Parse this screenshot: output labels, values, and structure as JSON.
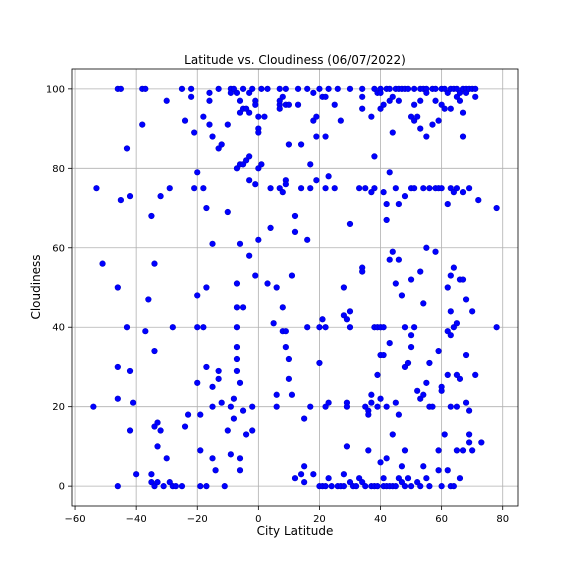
{
  "chart_data": {
    "type": "scatter",
    "title": "Latitude vs. Cloudiness (06/07/2022)",
    "xlabel": "City Latitude",
    "ylabel": "Cloudiness",
    "xlim": [
      -61,
      85
    ],
    "ylim": [
      -5,
      105
    ],
    "x_ticks": [
      -60,
      -40,
      -20,
      0,
      20,
      40,
      60,
      80
    ],
    "y_ticks": [
      0,
      20,
      40,
      60,
      80,
      100
    ],
    "grid": true,
    "legend": "none",
    "marker_color": "#0000ff",
    "marker_edge_color": "#0000cc",
    "points": [
      [
        -54,
        20
      ],
      [
        -53,
        75
      ],
      [
        -51,
        56
      ],
      [
        -46,
        100
      ],
      [
        -45,
        100
      ],
      [
        -46,
        50
      ],
      [
        -46,
        30
      ],
      [
        -45,
        72
      ],
      [
        -46,
        22
      ],
      [
        -46,
        0
      ],
      [
        -43,
        85
      ],
      [
        -42,
        73
      ],
      [
        -43,
        40
      ],
      [
        -42,
        29
      ],
      [
        -42,
        14
      ],
      [
        -41,
        21
      ],
      [
        -40,
        3
      ],
      [
        -38,
        100
      ],
      [
        -37,
        100
      ],
      [
        -38,
        91
      ],
      [
        -37,
        39
      ],
      [
        -36,
        47
      ],
      [
        -35,
        68
      ],
      [
        -35,
        3
      ],
      [
        -35,
        1
      ],
      [
        -34,
        0
      ],
      [
        -34,
        56
      ],
      [
        -34,
        34
      ],
      [
        -34,
        15
      ],
      [
        -33,
        16
      ],
      [
        -33,
        10
      ],
      [
        -32,
        73
      ],
      [
        -32,
        14
      ],
      [
        -33,
        1
      ],
      [
        -31,
        0
      ],
      [
        -30,
        97
      ],
      [
        -29,
        75
      ],
      [
        -30,
        7
      ],
      [
        -29,
        1
      ],
      [
        -28,
        40
      ],
      [
        -28,
        0
      ],
      [
        -27,
        0
      ],
      [
        -25,
        100
      ],
      [
        -24,
        92
      ],
      [
        -25,
        0
      ],
      [
        -24,
        15
      ],
      [
        -23,
        18
      ],
      [
        -22,
        100
      ],
      [
        -22,
        98
      ],
      [
        -21,
        89
      ],
      [
        -21,
        75
      ],
      [
        -20,
        79
      ],
      [
        -20,
        48
      ],
      [
        -20,
        40
      ],
      [
        -20,
        26
      ],
      [
        -19,
        18
      ],
      [
        -19,
        9
      ],
      [
        -19,
        0
      ],
      [
        -18,
        93
      ],
      [
        -18,
        75
      ],
      [
        -18,
        40
      ],
      [
        -17,
        70
      ],
      [
        -17,
        50
      ],
      [
        -17,
        30
      ],
      [
        -17,
        0
      ],
      [
        -16,
        99
      ],
      [
        -16,
        97
      ],
      [
        -16,
        91
      ],
      [
        -15,
        88
      ],
      [
        -15,
        61
      ],
      [
        -15,
        25
      ],
      [
        -15,
        20
      ],
      [
        -15,
        7
      ],
      [
        -14,
        4
      ],
      [
        -13,
        100
      ],
      [
        -13,
        85
      ],
      [
        -13,
        29
      ],
      [
        -13,
        27
      ],
      [
        -12,
        86
      ],
      [
        -12,
        21
      ],
      [
        -11,
        0
      ],
      [
        -10,
        91
      ],
      [
        -10,
        69
      ],
      [
        -10,
        14
      ],
      [
        -9,
        100
      ],
      [
        -9,
        99
      ],
      [
        -9,
        20
      ],
      [
        -9,
        8
      ],
      [
        -8,
        22
      ],
      [
        -8,
        17
      ],
      [
        -8,
        100
      ],
      [
        -7,
        99
      ],
      [
        -7,
        80
      ],
      [
        -7,
        51
      ],
      [
        -7,
        45
      ],
      [
        -7,
        40
      ],
      [
        -7,
        35
      ],
      [
        -7,
        32
      ],
      [
        -7,
        29
      ],
      [
        -6,
        26
      ],
      [
        -6,
        4
      ],
      [
        -6,
        97
      ],
      [
        -6,
        94
      ],
      [
        -6,
        81
      ],
      [
        -6,
        61
      ],
      [
        -6,
        7
      ],
      [
        -5,
        100
      ],
      [
        -5,
        95
      ],
      [
        -5,
        81
      ],
      [
        -5,
        45
      ],
      [
        -5,
        19
      ],
      [
        -4,
        95
      ],
      [
        -4,
        82
      ],
      [
        -4,
        13
      ],
      [
        -3,
        94
      ],
      [
        -3,
        99
      ],
      [
        -3,
        83
      ],
      [
        -3,
        77
      ],
      [
        -3,
        58
      ],
      [
        -2,
        14
      ],
      [
        -2,
        20
      ],
      [
        -2,
        100
      ],
      [
        -1,
        97
      ],
      [
        -1,
        96
      ],
      [
        -1,
        76
      ],
      [
        -1,
        53
      ],
      [
        0,
        93
      ],
      [
        0,
        90
      ],
      [
        0,
        89
      ],
      [
        0,
        80
      ],
      [
        0,
        62
      ],
      [
        1,
        100
      ],
      [
        1,
        81
      ],
      [
        2,
        93
      ],
      [
        3,
        51
      ],
      [
        3,
        100
      ],
      [
        4,
        75
      ],
      [
        4,
        65
      ],
      [
        5,
        41
      ],
      [
        6,
        23
      ],
      [
        6,
        20
      ],
      [
        6,
        50
      ],
      [
        7,
        100
      ],
      [
        7,
        96
      ],
      [
        7,
        97
      ],
      [
        7,
        95
      ],
      [
        7,
        75
      ],
      [
        8,
        98
      ],
      [
        8,
        74
      ],
      [
        8,
        45
      ],
      [
        8,
        39
      ],
      [
        9,
        100
      ],
      [
        9,
        96
      ],
      [
        9,
        77
      ],
      [
        9,
        76
      ],
      [
        9,
        39
      ],
      [
        9,
        35
      ],
      [
        10,
        32
      ],
      [
        10,
        27
      ],
      [
        10,
        96
      ],
      [
        10,
        86
      ],
      [
        11,
        53
      ],
      [
        11,
        23
      ],
      [
        12,
        68
      ],
      [
        12,
        64
      ],
      [
        12,
        2
      ],
      [
        13,
        100
      ],
      [
        13,
        96
      ],
      [
        14,
        86
      ],
      [
        14,
        75
      ],
      [
        14,
        3
      ],
      [
        15,
        1
      ],
      [
        15,
        5
      ],
      [
        15,
        17
      ],
      [
        16,
        62
      ],
      [
        16,
        100
      ],
      [
        16,
        40
      ],
      [
        17,
        81
      ],
      [
        17,
        75
      ],
      [
        17,
        20
      ],
      [
        18,
        92
      ],
      [
        18,
        3
      ],
      [
        18,
        99
      ],
      [
        19,
        93
      ],
      [
        19,
        88
      ],
      [
        19,
        77
      ],
      [
        20,
        40
      ],
      [
        20,
        100
      ],
      [
        20,
        31
      ],
      [
        20,
        0
      ],
      [
        21,
        98
      ],
      [
        21,
        42
      ],
      [
        21,
        0
      ],
      [
        22,
        98
      ],
      [
        22,
        88
      ],
      [
        22,
        75
      ],
      [
        22,
        40
      ],
      [
        22,
        20
      ],
      [
        22,
        0
      ],
      [
        23,
        100
      ],
      [
        23,
        78
      ],
      [
        23,
        21
      ],
      [
        23,
        2
      ],
      [
        24,
        0
      ],
      [
        25,
        75
      ],
      [
        25,
        96
      ],
      [
        26,
        100
      ],
      [
        26,
        0
      ],
      [
        27,
        0
      ],
      [
        27,
        92
      ],
      [
        28,
        50
      ],
      [
        28,
        43
      ],
      [
        28,
        3
      ],
      [
        28,
        0
      ],
      [
        29,
        42
      ],
      [
        29,
        21
      ],
      [
        29,
        20
      ],
      [
        29,
        10
      ],
      [
        30,
        66
      ],
      [
        30,
        100
      ],
      [
        30,
        44
      ],
      [
        30,
        40
      ],
      [
        30,
        1
      ],
      [
        31,
        0
      ],
      [
        32,
        0
      ],
      [
        33,
        75
      ],
      [
        33,
        2
      ],
      [
        34,
        100
      ],
      [
        34,
        98
      ],
      [
        34,
        95
      ],
      [
        34,
        55
      ],
      [
        34,
        54
      ],
      [
        34,
        1
      ],
      [
        35,
        75
      ],
      [
        35,
        0
      ],
      [
        35,
        20
      ],
      [
        36,
        19
      ],
      [
        36,
        9
      ],
      [
        36,
        18
      ],
      [
        37,
        93
      ],
      [
        37,
        74
      ],
      [
        37,
        23
      ],
      [
        37,
        21
      ],
      [
        37,
        0
      ],
      [
        38,
        100
      ],
      [
        38,
        83
      ],
      [
        38,
        75
      ],
      [
        38,
        40
      ],
      [
        38,
        0
      ],
      [
        39,
        99
      ],
      [
        39,
        40
      ],
      [
        39,
        28
      ],
      [
        39,
        20
      ],
      [
        39,
        0
      ],
      [
        40,
        100
      ],
      [
        40,
        99
      ],
      [
        40,
        95
      ],
      [
        40,
        40
      ],
      [
        40,
        33
      ],
      [
        40,
        22
      ],
      [
        40,
        6
      ],
      [
        41,
        96
      ],
      [
        41,
        74
      ],
      [
        41,
        40
      ],
      [
        41,
        33
      ],
      [
        41,
        2
      ],
      [
        41,
        0
      ],
      [
        42,
        100
      ],
      [
        42,
        71
      ],
      [
        42,
        67
      ],
      [
        42,
        20
      ],
      [
        42,
        7
      ],
      [
        42,
        0
      ],
      [
        43,
        100
      ],
      [
        43,
        97
      ],
      [
        43,
        79
      ],
      [
        43,
        57
      ],
      [
        43,
        36
      ],
      [
        43,
        0
      ],
      [
        44,
        98
      ],
      [
        44,
        89
      ],
      [
        44,
        59
      ],
      [
        44,
        13
      ],
      [
        44,
        0
      ],
      [
        45,
        100
      ],
      [
        45,
        75
      ],
      [
        45,
        51
      ],
      [
        45,
        21
      ],
      [
        45,
        0
      ],
      [
        46,
        100
      ],
      [
        46,
        97
      ],
      [
        46,
        71
      ],
      [
        46,
        57
      ],
      [
        46,
        18
      ],
      [
        46,
        2
      ],
      [
        47,
        100
      ],
      [
        47,
        48
      ],
      [
        47,
        5
      ],
      [
        47,
        1
      ],
      [
        48,
        100
      ],
      [
        48,
        73
      ],
      [
        48,
        40
      ],
      [
        48,
        30
      ],
      [
        48,
        9
      ],
      [
        48,
        0
      ],
      [
        49,
        100
      ],
      [
        49,
        31
      ],
      [
        49,
        2
      ],
      [
        50,
        93
      ],
      [
        50,
        75
      ],
      [
        50,
        52
      ],
      [
        50,
        38
      ],
      [
        50,
        35
      ],
      [
        50,
        0
      ],
      [
        51,
        100
      ],
      [
        51,
        96
      ],
      [
        51,
        92
      ],
      [
        51,
        75
      ],
      [
        51,
        40
      ],
      [
        52,
        93
      ],
      [
        52,
        24
      ],
      [
        52,
        1
      ],
      [
        53,
        100
      ],
      [
        53,
        97
      ],
      [
        53,
        90
      ],
      [
        53,
        54
      ],
      [
        53,
        22
      ],
      [
        53,
        0
      ],
      [
        54,
        100
      ],
      [
        54,
        75
      ],
      [
        54,
        46
      ],
      [
        54,
        23
      ],
      [
        54,
        5
      ],
      [
        55,
        100
      ],
      [
        55,
        99
      ],
      [
        55,
        88
      ],
      [
        55,
        60
      ],
      [
        55,
        26
      ],
      [
        55,
        2
      ],
      [
        56,
        75
      ],
      [
        56,
        31
      ],
      [
        56,
        20
      ],
      [
        56,
        0
      ],
      [
        57,
        100
      ],
      [
        57,
        91
      ],
      [
        57,
        20
      ],
      [
        58,
        100
      ],
      [
        58,
        97
      ],
      [
        58,
        75
      ],
      [
        58,
        59
      ],
      [
        59,
        92
      ],
      [
        59,
        75
      ],
      [
        59,
        34
      ],
      [
        59,
        9
      ],
      [
        59,
        4
      ],
      [
        60,
        100
      ],
      [
        60,
        96
      ],
      [
        60,
        75
      ],
      [
        60,
        25
      ],
      [
        60,
        24
      ],
      [
        60,
        0
      ],
      [
        61,
        100
      ],
      [
        61,
        95
      ],
      [
        61,
        13
      ],
      [
        62,
        99
      ],
      [
        62,
        71
      ],
      [
        62,
        50
      ],
      [
        62,
        39
      ],
      [
        62,
        28
      ],
      [
        62,
        4
      ],
      [
        63,
        100
      ],
      [
        63,
        95
      ],
      [
        63,
        75
      ],
      [
        63,
        53
      ],
      [
        63,
        44
      ],
      [
        63,
        38
      ],
      [
        63,
        20
      ],
      [
        63,
        0
      ],
      [
        64,
        100
      ],
      [
        64,
        74
      ],
      [
        64,
        55
      ],
      [
        64,
        40
      ],
      [
        64,
        0
      ],
      [
        65,
        100
      ],
      [
        65,
        98
      ],
      [
        65,
        75
      ],
      [
        65,
        41
      ],
      [
        65,
        28
      ],
      [
        65,
        20
      ],
      [
        65,
        9
      ],
      [
        66,
        99
      ],
      [
        66,
        97
      ],
      [
        66,
        52
      ],
      [
        66,
        27
      ],
      [
        66,
        2
      ],
      [
        67,
        100
      ],
      [
        67,
        94
      ],
      [
        67,
        88
      ],
      [
        67,
        74
      ],
      [
        67,
        52
      ],
      [
        67,
        9
      ],
      [
        68,
        100
      ],
      [
        68,
        99
      ],
      [
        68,
        47
      ],
      [
        68,
        33
      ],
      [
        68,
        21
      ],
      [
        69,
        100
      ],
      [
        69,
        75
      ],
      [
        69,
        19
      ],
      [
        69,
        13
      ],
      [
        69,
        11
      ],
      [
        70,
        100
      ],
      [
        70,
        44
      ],
      [
        70,
        9
      ],
      [
        71,
        100
      ],
      [
        71,
        98
      ],
      [
        71,
        28
      ],
      [
        72,
        72
      ],
      [
        73,
        11
      ],
      [
        78,
        70
      ],
      [
        78,
        40
      ]
    ]
  }
}
